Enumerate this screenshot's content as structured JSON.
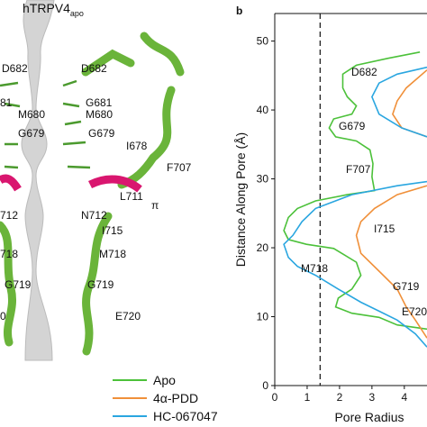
{
  "structure_panel": {
    "title": "hTRPV4",
    "title_subscript": "apo",
    "labels": [
      "D682",
      "D682",
      "81",
      "G681",
      "M680",
      "M680",
      "G679",
      "G679",
      "I678",
      "F707",
      "L711",
      "π",
      "712",
      "N712",
      "I715",
      "718",
      "M718",
      "G719",
      "G719",
      "0",
      "E720"
    ]
  },
  "chart_panel_label": "b",
  "chart_data": {
    "type": "line",
    "x_label": "Pore Radius",
    "y_label": "Distance Along Pore (Å)",
    "xlim": [
      0,
      4.7
    ],
    "ylim": [
      0,
      54
    ],
    "xticks": [
      0,
      1,
      2,
      3,
      4
    ],
    "yticks": [
      0,
      10,
      20,
      30,
      40,
      50
    ],
    "reference_x": 1.4,
    "annotations": [
      "D682",
      "G679",
      "F707",
      "I715",
      "M718",
      "G719",
      "E720"
    ],
    "series": [
      {
        "name": "Apo",
        "color": "#4cc13a",
        "x": [
          4.48,
          3.5,
          2.52,
          2.1,
          2.1,
          2.24,
          2.52,
          2.38,
          1.82,
          1.68,
          1.88,
          2.52,
          2.94,
          3.03,
          3.0,
          3.08,
          2.8,
          2.24,
          1.26,
          0.7,
          0.42,
          0.28,
          0.42,
          0.98,
          1.82,
          2.52,
          2.66,
          2.38,
          1.96,
          1.88,
          2.38,
          3.22,
          3.78,
          4.7
        ],
        "values": [
          48.4,
          47.5,
          46.5,
          45.2,
          43.2,
          41.9,
          40.6,
          39.4,
          38.7,
          37.4,
          36.1,
          35.5,
          34.2,
          32.2,
          30.3,
          28.3,
          28.1,
          27.7,
          26.8,
          25.7,
          24.4,
          22.5,
          21.2,
          20.5,
          19.9,
          17.9,
          16.0,
          14.0,
          12.7,
          11.4,
          10.5,
          9.9,
          8.8,
          8.2
        ]
      },
      {
        "name": "4α-PDD",
        "color": "#f0903a",
        "x": [
          4.7,
          4.06,
          3.78,
          3.64,
          3.92,
          4.7,
          null,
          4.7,
          3.78,
          3.08,
          2.66,
          2.52,
          2.66,
          3.22,
          3.78,
          4.06,
          4.34,
          4.7
        ],
        "values": [
          45.8,
          43.2,
          41.3,
          39.4,
          37.4,
          36.1,
          null,
          29.0,
          27.7,
          25.7,
          23.8,
          21.8,
          19.2,
          16.6,
          14.0,
          11.4,
          9.5,
          6.9
        ]
      },
      {
        "name": "HC-067047",
        "color": "#2aa6e0",
        "x": [
          4.7,
          3.78,
          3.22,
          3.0,
          3.22,
          3.92,
          4.7,
          null,
          4.7,
          3.78,
          2.38,
          1.26,
          0.84,
          0.56,
          0.28,
          0.42,
          0.7,
          1.26,
          1.96,
          2.66,
          3.22,
          3.78,
          4.34,
          4.7
        ],
        "values": [
          46.2,
          45.2,
          43.9,
          41.9,
          39.4,
          37.4,
          36.1,
          null,
          29.6,
          29.0,
          27.7,
          25.7,
          23.8,
          21.8,
          20.5,
          18.6,
          17.3,
          16.0,
          14.0,
          12.1,
          10.8,
          9.5,
          7.5,
          5.6
        ]
      }
    ]
  }
}
